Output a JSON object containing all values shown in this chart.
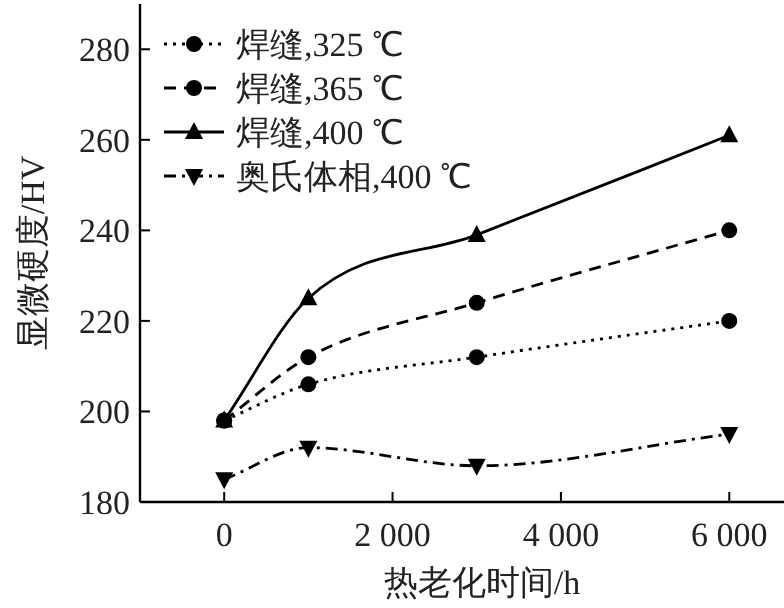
{
  "chart_data": {
    "type": "line",
    "xlabel": "热老化时间/h",
    "ylabel": "显微硬度/HV",
    "x": [
      0,
      1000,
      3000,
      6000
    ],
    "xlim": [
      -1000,
      6650
    ],
    "xticks": [
      0,
      {
        "value": 2000,
        "label": "2 000"
      },
      {
        "value": 4000,
        "label": "4 000"
      },
      {
        "value": 6000,
        "label": "6 000"
      }
    ],
    "ylim": [
      180,
      290
    ],
    "yticks": [
      180,
      200,
      220,
      240,
      260,
      280
    ],
    "series": [
      {
        "name": "焊缝,325 ℃",
        "color": "#000000",
        "values": [
          198,
          206,
          212,
          220
        ],
        "marker": "circle",
        "line_style": "dotted"
      },
      {
        "name": "焊缝,365 ℃",
        "color": "#000000",
        "values": [
          198,
          212,
          224,
          240
        ],
        "marker": "circle",
        "line_style": "dashed"
      },
      {
        "name": "焊缝,400 ℃",
        "color": "#000000",
        "values": [
          198,
          225,
          239,
          261
        ],
        "marker": "triangle",
        "line_style": "solid"
      },
      {
        "name": "奥氏体相,400 ℃",
        "color": "#000000",
        "values": [
          185,
          192,
          188,
          195
        ],
        "marker": "triangle-down",
        "line_style": "dashdot"
      }
    ],
    "grid": false,
    "legend": "top left"
  }
}
